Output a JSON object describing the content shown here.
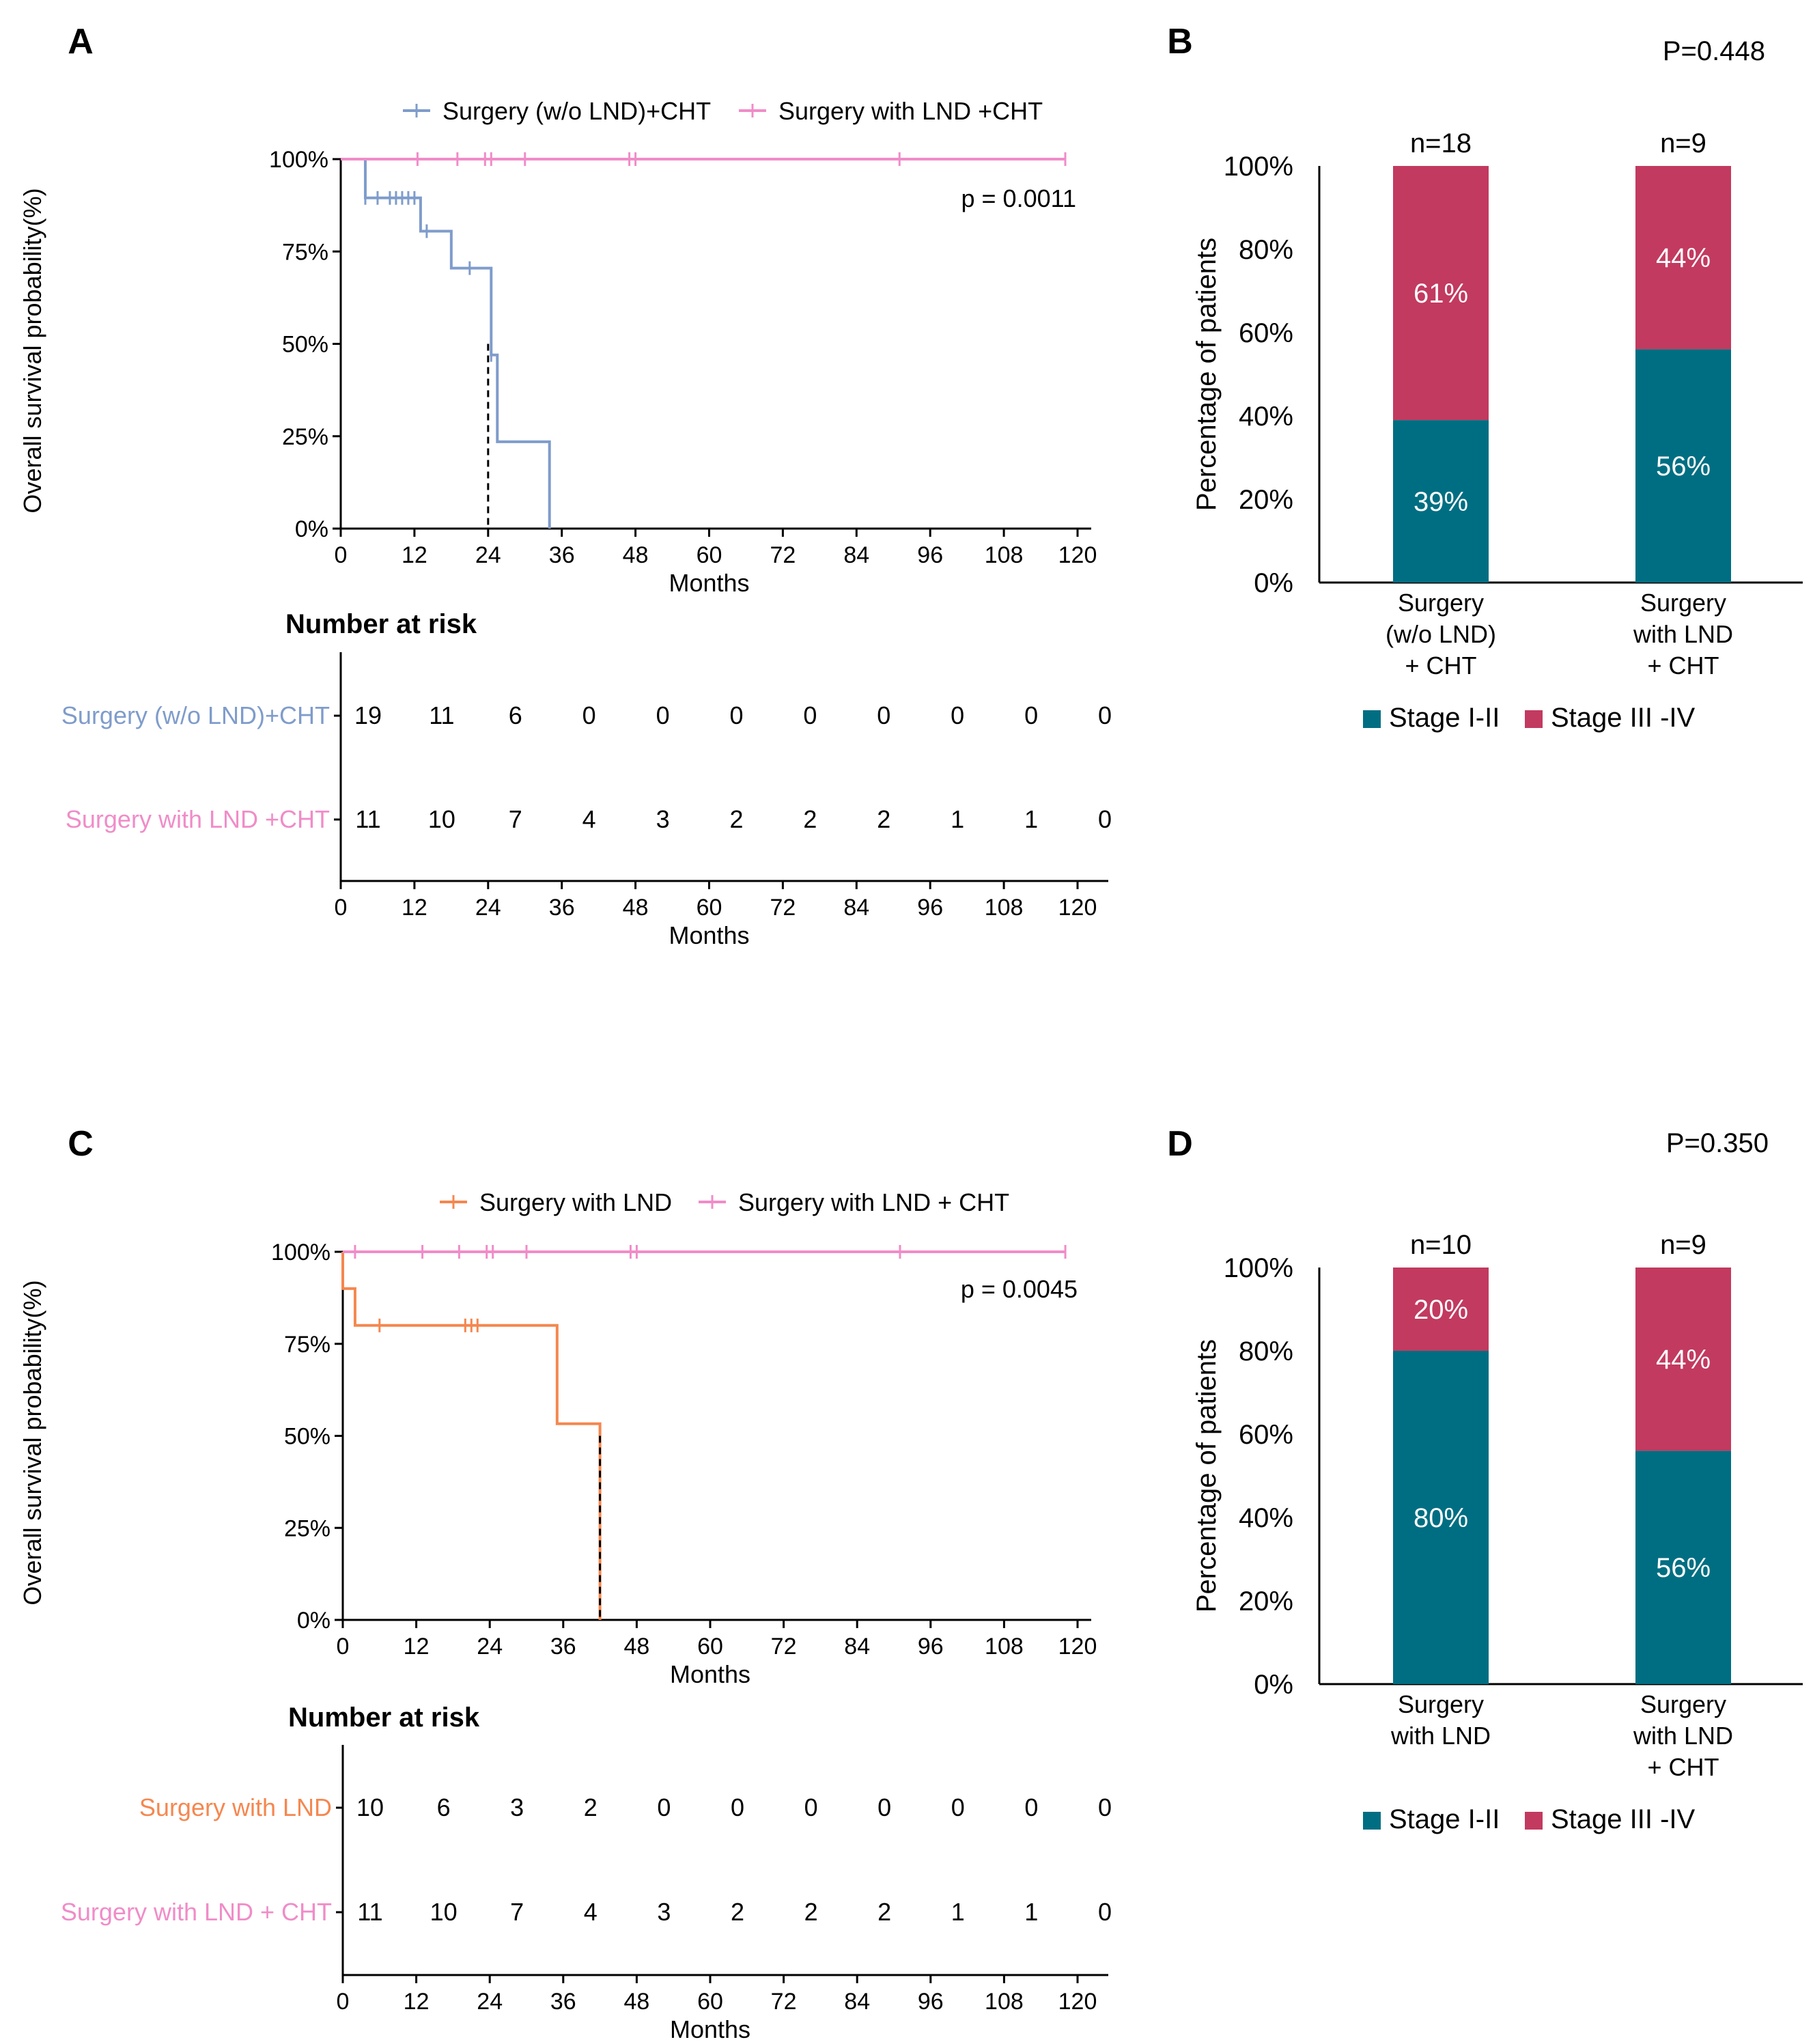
{
  "figure": {
    "panel_labels": [
      "A",
      "B",
      "C",
      "D"
    ]
  },
  "colors": {
    "blue": "#7f9ccb",
    "pink": "#f08cc8",
    "orange": "#f5874f",
    "teal": "#006e82",
    "crimson": "#c23a5f",
    "axis": "#000000",
    "median_line": "#000000"
  },
  "chart_data": [
    {
      "id": "A",
      "type": "line",
      "subtype": "kaplan-meier",
      "ylabel": "Overall survival probability(%)",
      "xlabel": "Months",
      "xlim": [
        0,
        120
      ],
      "ylim": [
        0,
        100
      ],
      "xticks": [
        "0",
        "12",
        "24",
        "36",
        "48",
        "60",
        "72",
        "84",
        "96",
        "108",
        "120"
      ],
      "yticks": [
        "0%",
        "25%",
        "50%",
        "75%",
        "100%"
      ],
      "p_value": "p = 0.0011",
      "median_line_x": 24,
      "series": [
        {
          "name": "Surgery (w/o LND)+CHT",
          "color": "#7f9ccb",
          "steps": [
            [
              0,
              100
            ],
            [
              4,
              100
            ],
            [
              4,
              89.5
            ],
            [
              13,
              89.5
            ],
            [
              13,
              80.5
            ],
            [
              18,
              80.5
            ],
            [
              18,
              70.5
            ],
            [
              24.5,
              70.5
            ],
            [
              24.5,
              47
            ],
            [
              25.5,
              47
            ],
            [
              25.5,
              23.5
            ],
            [
              34,
              23.5
            ],
            [
              34,
              0
            ]
          ],
          "censor": [
            [
              4,
              89.5
            ],
            [
              6,
              89.5
            ],
            [
              8,
              89.5
            ],
            [
              9,
              89.5
            ],
            [
              10,
              89.5
            ],
            [
              11,
              89.5
            ],
            [
              12,
              89.5
            ],
            [
              14,
              80.5
            ],
            [
              21,
              70.5
            ],
            [
              24.5,
              47
            ]
          ]
        },
        {
          "name": "Surgery with LND +CHT",
          "color": "#f08cc8",
          "steps": [
            [
              0,
              100
            ],
            [
              118,
              100
            ]
          ],
          "censor": [
            [
              12.5,
              100
            ],
            [
              19,
              100
            ],
            [
              23.5,
              100
            ],
            [
              24.5,
              100
            ],
            [
              30,
              100
            ],
            [
              47,
              100
            ],
            [
              48,
              100
            ],
            [
              91,
              100
            ],
            [
              118,
              100
            ]
          ]
        }
      ],
      "risk_table": {
        "title": "Number at risk",
        "xlabel": "Months",
        "xticks": [
          "0",
          "12",
          "24",
          "36",
          "48",
          "60",
          "72",
          "84",
          "96",
          "108",
          "120"
        ],
        "rows": [
          {
            "label": "Surgery (w/o LND)+CHT",
            "color": "#7f9ccb",
            "values": [
              "19",
              "11",
              "6",
              "0",
              "0",
              "0",
              "0",
              "0",
              "0",
              "0",
              "0"
            ]
          },
          {
            "label": "Surgery with LND +CHT",
            "color": "#f08cc8",
            "values": [
              "11",
              "10",
              "7",
              "4",
              "3",
              "2",
              "2",
              "2",
              "1",
              "1",
              "0"
            ]
          }
        ]
      }
    },
    {
      "id": "B",
      "type": "bar",
      "subtype": "stacked-percent",
      "p_value": "P=0.448",
      "ylabel": "Percentage of patients",
      "ylim": [
        0,
        100
      ],
      "yticks": [
        "0%",
        "20%",
        "40%",
        "60%",
        "80%",
        "100%"
      ],
      "categories": [
        [
          "Surgery",
          "(w/o LND)",
          "+ CHT"
        ],
        [
          "Surgery",
          "with LND",
          "+ CHT"
        ]
      ],
      "n_labels": [
        "n=18",
        "n=9"
      ],
      "series": [
        {
          "name": "Stage I-II",
          "color": "#006e82",
          "values": [
            39,
            56
          ],
          "labels": [
            "39%",
            "56%"
          ]
        },
        {
          "name": "Stage III-IV",
          "color": "#c23a5f",
          "values": [
            61,
            44
          ],
          "labels": [
            "61%",
            "44%"
          ]
        }
      ],
      "legend": [
        "Stage I-II",
        "Stage III -IV"
      ]
    },
    {
      "id": "C",
      "type": "line",
      "subtype": "kaplan-meier",
      "ylabel": "Overall survival probability(%)",
      "xlabel": "Months",
      "xlim": [
        0,
        120
      ],
      "ylim": [
        0,
        100
      ],
      "xticks": [
        "0",
        "12",
        "24",
        "36",
        "48",
        "60",
        "72",
        "84",
        "96",
        "108",
        "120"
      ],
      "yticks": [
        "0%",
        "25%",
        "50%",
        "75%",
        "100%"
      ],
      "p_value": "p = 0.0045",
      "median_line_x": 42,
      "series": [
        {
          "name": "Surgery with LND",
          "color": "#f5874f",
          "steps": [
            [
              0,
              100
            ],
            [
              0,
              90
            ],
            [
              2,
              90
            ],
            [
              2,
              80
            ],
            [
              35,
              80
            ],
            [
              35,
              53.3
            ],
            [
              42,
              53.3
            ],
            [
              42,
              0
            ]
          ],
          "censor": [
            [
              6,
              80
            ],
            [
              20,
              80
            ],
            [
              21,
              80
            ],
            [
              22,
              80
            ]
          ]
        },
        {
          "name": "Surgery with LND + CHT",
          "color": "#f08cc8",
          "steps": [
            [
              0,
              100
            ],
            [
              118,
              100
            ]
          ],
          "censor": [
            [
              2,
              100
            ],
            [
              13,
              100
            ],
            [
              19,
              100
            ],
            [
              23.5,
              100
            ],
            [
              24.5,
              100
            ],
            [
              30,
              100
            ],
            [
              47,
              100
            ],
            [
              48,
              100
            ],
            [
              91,
              100
            ],
            [
              118,
              100
            ]
          ]
        }
      ],
      "risk_table": {
        "title": "Number at risk",
        "xlabel": "Months",
        "xticks": [
          "0",
          "12",
          "24",
          "36",
          "48",
          "60",
          "72",
          "84",
          "96",
          "108",
          "120"
        ],
        "rows": [
          {
            "label": "Surgery with LND",
            "color": "#f5874f",
            "values": [
              "10",
              "6",
              "3",
              "2",
              "0",
              "0",
              "0",
              "0",
              "0",
              "0",
              "0"
            ]
          },
          {
            "label": "Surgery with LND + CHT",
            "color": "#f08cc8",
            "values": [
              "11",
              "10",
              "7",
              "4",
              "3",
              "2",
              "2",
              "2",
              "1",
              "1",
              "0"
            ]
          }
        ]
      }
    },
    {
      "id": "D",
      "type": "bar",
      "subtype": "stacked-percent",
      "p_value": "P=0.350",
      "ylabel": "Percentage of patients",
      "ylim": [
        0,
        100
      ],
      "yticks": [
        "0%",
        "20%",
        "40%",
        "60%",
        "80%",
        "100%"
      ],
      "categories": [
        [
          "Surgery",
          "with LND"
        ],
        [
          "Surgery",
          "with LND",
          "+ CHT"
        ]
      ],
      "n_labels": [
        "n=10",
        "n=9"
      ],
      "series": [
        {
          "name": "Stage I-II",
          "color": "#006e82",
          "values": [
            80,
            56
          ],
          "labels": [
            "80%",
            "56%"
          ]
        },
        {
          "name": "Stage III-IV",
          "color": "#c23a5f",
          "values": [
            20,
            44
          ],
          "labels": [
            "20%",
            "44%"
          ]
        }
      ],
      "legend": [
        "Stage I-II",
        "Stage III -IV"
      ]
    }
  ]
}
